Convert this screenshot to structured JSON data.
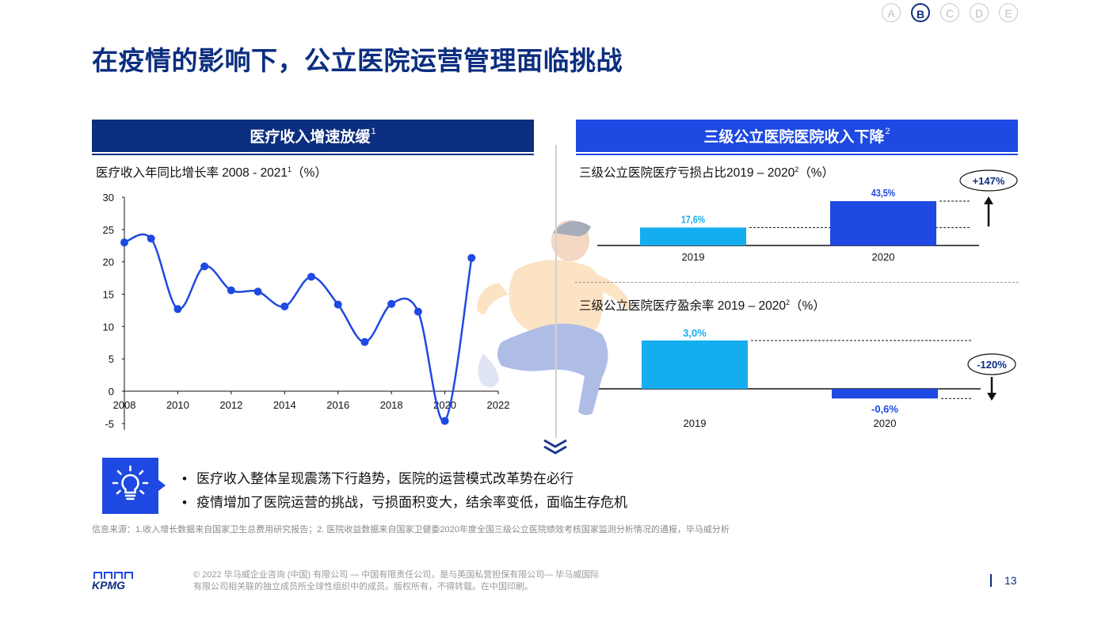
{
  "nav": {
    "items": [
      "A",
      "B",
      "C",
      "D",
      "E"
    ],
    "active": "B"
  },
  "page_title": "在疫情的影响下，公立医院运营管理面临挑战",
  "left_panel": {
    "header": "医疗收入增速放缓",
    "header_sup": "1",
    "subtitle": "医疗收入年同比增长率 2008 - 2021",
    "subtitle_sup": "1",
    "subtitle_unit": "（%）"
  },
  "right_panel": {
    "header": "三级公立医院医院收入下降",
    "header_sup": "2",
    "top_subtitle": "三级公立医院医疗亏损占比2019 – 2020",
    "top_subtitle_sup": "2",
    "top_subtitle_unit": "（%）",
    "bottom_subtitle": "三级公立医院医疗盈余率 2019 – 2020",
    "bottom_subtitle_sup": "2",
    "bottom_subtitle_unit": "（%）",
    "top_change": "+147%",
    "bottom_change": "-120%"
  },
  "chart_data": [
    {
      "type": "line",
      "x": [
        2008,
        2009,
        2010,
        2011,
        2012,
        2013,
        2014,
        2015,
        2016,
        2017,
        2018,
        2019,
        2020,
        2021
      ],
      "y": [
        23.0,
        23.6,
        12.7,
        19.3,
        15.6,
        15.4,
        13.1,
        17.7,
        13.4,
        7.6,
        13.5,
        12.3,
        -4.6,
        20.6
      ],
      "xlim": [
        2008,
        2022
      ],
      "ylim": [
        -5,
        30
      ],
      "x_ticks": [
        "2008",
        "2010",
        "2012",
        "2014",
        "2016",
        "2018",
        "2020",
        "2022"
      ],
      "y_ticks": [
        "30",
        "25",
        "20",
        "15",
        "10",
        "5",
        "0",
        "-5"
      ],
      "color": "#1e49e2"
    },
    {
      "type": "bar",
      "categories": [
        "2019",
        "2020"
      ],
      "values": [
        17.6,
        43.5
      ],
      "labels": [
        "17,6%",
        "43,5%"
      ],
      "colors": [
        "#14adee",
        "#1e49e2"
      ]
    },
    {
      "type": "bar",
      "categories": [
        "2019",
        "2020"
      ],
      "values": [
        3.0,
        -0.6
      ],
      "labels": [
        "3,0%",
        "-0,6%"
      ],
      "colors": [
        "#14adee",
        "#1e49e2"
      ]
    }
  ],
  "insights": [
    "医疗收入整体呈现震荡下行趋势，医院的运营模式改革势在必行",
    "疫情增加了医院运营的挑战，亏损面积变大，结余率变低，面临生存危机"
  ],
  "source_note": "信息来源：1.收入增长数据来自国家卫生总费用研究报告；2. 医院收益数据来自国家卫健委2020年度全国三级公立医院绩效考核国家监测分析情况的通报，毕马威分析",
  "copyright": "© 2022 毕马威企业咨询 (中国) 有限公司 — 中国有限责任公司，是与英国私营担保有限公司— 毕马威国际有限公司相关联的独立成员所全球性组织中的成员。版权所有，不得转载。在中国印刷。",
  "logo_text": "KPMG",
  "page_number": "13",
  "colors": {
    "navy": "#0c2e80",
    "royal": "#1e49e2",
    "cyan": "#14adee"
  }
}
